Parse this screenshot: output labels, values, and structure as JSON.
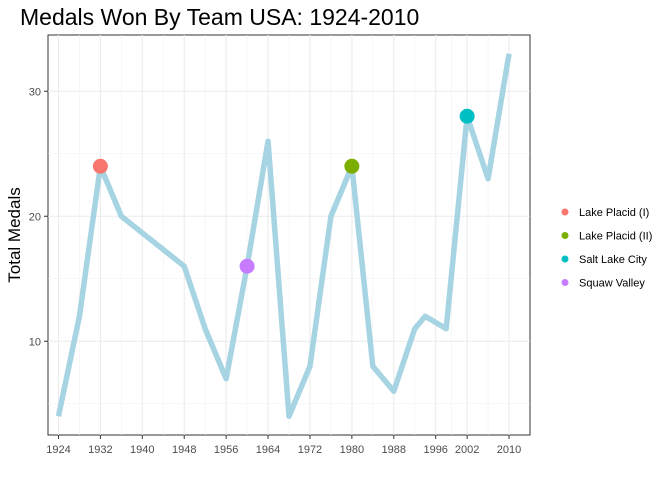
{
  "chart_data": {
    "type": "line",
    "title": "Medals Won By Team USA: 1924-2010",
    "xlabel": "",
    "ylabel": "Total Medals",
    "x_ticks": [
      1924,
      1932,
      1940,
      1948,
      1956,
      1964,
      1972,
      1980,
      1988,
      1996,
      2002,
      2010
    ],
    "y_ticks": [
      10,
      20,
      30
    ],
    "xlim": [
      1922,
      2014
    ],
    "ylim": [
      2.5,
      34.5
    ],
    "grid": true,
    "line_color": "#a6d4e3",
    "series": [
      {
        "x": [
          1924,
          1928,
          1932,
          1936,
          1948,
          1952,
          1956,
          1960,
          1964,
          1968,
          1972,
          1976,
          1980,
          1984,
          1988,
          1992,
          1994,
          1998,
          2002,
          2006,
          2010
        ],
        "y": [
          4,
          12,
          24,
          20,
          16,
          11,
          7,
          16,
          26,
          4,
          8,
          20,
          24,
          8,
          6,
          11,
          12,
          11,
          28,
          23,
          33
        ]
      }
    ],
    "highlights": [
      {
        "name": "Lake Placid (I)",
        "x": 1932,
        "y": 24,
        "color": "#f8766d"
      },
      {
        "name": "Lake Placid (II)",
        "x": 1980,
        "y": 24,
        "color": "#7cae00"
      },
      {
        "name": "Salt Lake City",
        "x": 2002,
        "y": 28,
        "color": "#00bfc4"
      },
      {
        "name": "Squaw Valley",
        "x": 1960,
        "y": 16,
        "color": "#c77cff"
      }
    ],
    "legend_position": "right"
  }
}
